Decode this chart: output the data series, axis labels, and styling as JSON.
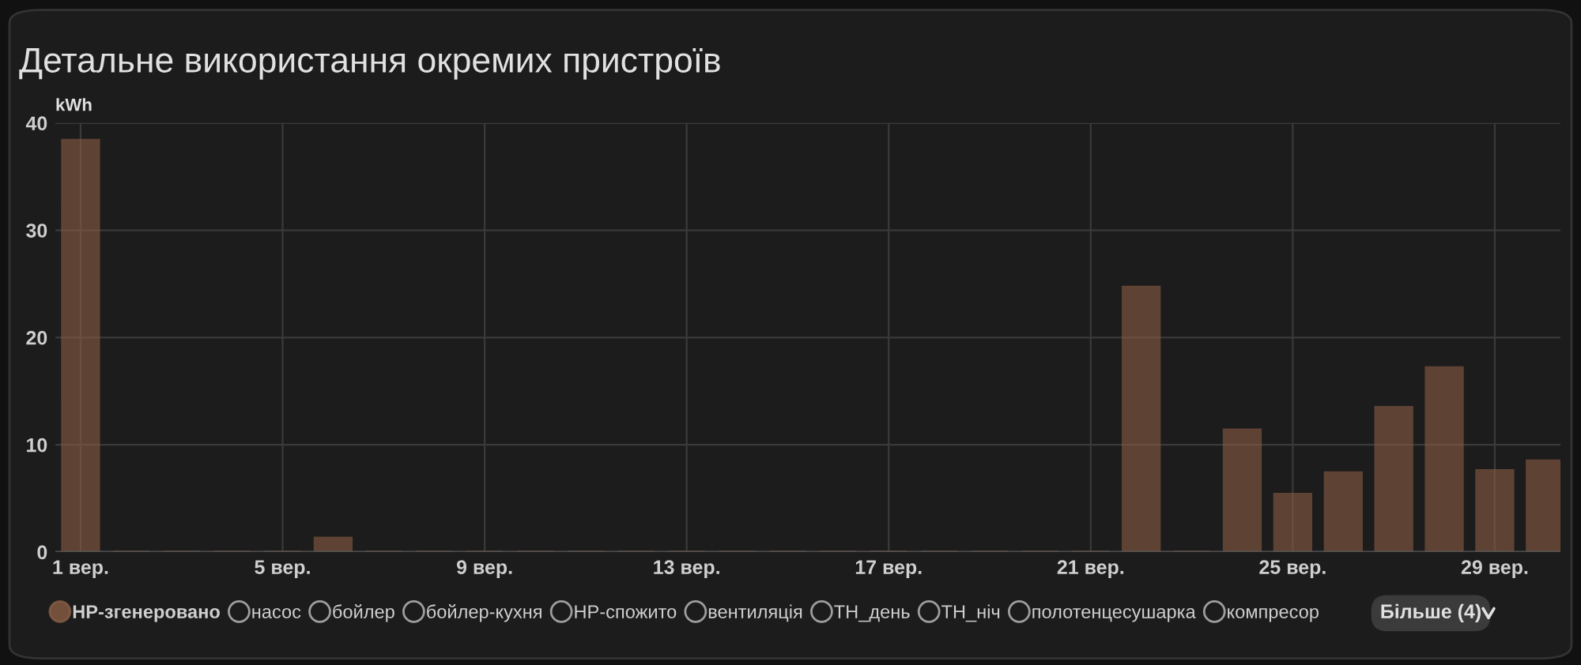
{
  "chart_data": {
    "type": "bar",
    "title": "Детальне використання окремих пристроїв",
    "ylabel": "kWh",
    "categories": [
      "1 вер.",
      null,
      null,
      null,
      "5 вер.",
      null,
      null,
      null,
      "9 вер.",
      null,
      null,
      null,
      "13 вер.",
      null,
      null,
      null,
      "17 вер.",
      null,
      null,
      null,
      "21 вер.",
      null,
      null,
      null,
      "25 вер.",
      null,
      null,
      null,
      "29 вер.",
      null
    ],
    "series": [
      {
        "name": "HP-згенеровано",
        "color": "#8a5e45",
        "values": [
          38.4,
          0,
          0,
          0,
          0,
          1.3,
          0,
          0,
          0,
          0,
          0,
          0,
          0,
          0,
          0,
          0,
          0,
          0,
          0,
          0,
          0,
          24.7,
          0,
          11.4,
          5.4,
          7.4,
          13.5,
          17.2,
          7.6,
          8.5
        ]
      },
      {
        "name": "насос",
        "color": "#9e9e9e",
        "values": [
          null,
          null,
          null,
          null,
          null,
          null,
          null,
          null,
          null,
          null,
          null,
          null,
          null,
          null,
          null,
          null,
          null,
          null,
          null,
          null,
          null,
          null,
          null,
          null,
          null,
          null,
          null,
          null,
          null,
          null
        ]
      },
      {
        "name": "бойлер",
        "color": "#9e9e9e",
        "values": [
          null,
          null,
          null,
          null,
          null,
          null,
          null,
          null,
          null,
          null,
          null,
          null,
          null,
          null,
          null,
          null,
          null,
          null,
          null,
          null,
          null,
          null,
          null,
          null,
          null,
          null,
          null,
          null,
          null,
          null
        ]
      },
      {
        "name": "бойлер-кухня",
        "color": "#9e9e9e",
        "values": [
          null,
          null,
          null,
          null,
          null,
          null,
          null,
          null,
          null,
          null,
          null,
          null,
          null,
          null,
          null,
          null,
          null,
          null,
          null,
          null,
          null,
          null,
          null,
          null,
          null,
          null,
          null,
          null,
          null,
          null
        ]
      },
      {
        "name": "HP-спожито",
        "color": "#9e9e9e",
        "values": [
          null,
          null,
          null,
          null,
          null,
          null,
          null,
          null,
          null,
          null,
          null,
          null,
          null,
          null,
          null,
          null,
          null,
          null,
          null,
          null,
          null,
          null,
          null,
          null,
          null,
          null,
          null,
          null,
          null,
          null
        ]
      },
      {
        "name": "вентиляція",
        "color": "#9e9e9e",
        "values": [
          null,
          null,
          null,
          null,
          null,
          null,
          null,
          null,
          null,
          null,
          null,
          null,
          null,
          null,
          null,
          null,
          null,
          null,
          null,
          null,
          null,
          null,
          null,
          null,
          null,
          null,
          null,
          null,
          null,
          null
        ]
      },
      {
        "name": "ТН_день",
        "color": "#9e9e9e",
        "values": [
          null,
          null,
          null,
          null,
          null,
          null,
          null,
          null,
          null,
          null,
          null,
          null,
          null,
          null,
          null,
          null,
          null,
          null,
          null,
          null,
          null,
          null,
          null,
          null,
          null,
          null,
          null,
          null,
          null,
          null
        ]
      },
      {
        "name": "ТН_ніч",
        "color": "#9e9e9e",
        "values": [
          null,
          null,
          null,
          null,
          null,
          null,
          null,
          null,
          null,
          null,
          null,
          null,
          null,
          null,
          null,
          null,
          null,
          null,
          null,
          null,
          null,
          null,
          null,
          null,
          null,
          null,
          null,
          null,
          null,
          null
        ]
      },
      {
        "name": "полотенцесушарка",
        "color": "#9e9e9e",
        "values": [
          null,
          null,
          null,
          null,
          null,
          null,
          null,
          null,
          null,
          null,
          null,
          null,
          null,
          null,
          null,
          null,
          null,
          null,
          null,
          null,
          null,
          null,
          null,
          null,
          null,
          null,
          null,
          null,
          null,
          null
        ]
      },
      {
        "name": "компресор",
        "color": "#9e9e9e",
        "values": [
          null,
          null,
          null,
          null,
          null,
          null,
          null,
          null,
          null,
          null,
          null,
          null,
          null,
          null,
          null,
          null,
          null,
          null,
          null,
          null,
          null,
          null,
          null,
          null,
          null,
          null,
          null,
          null,
          null,
          null
        ]
      }
    ],
    "ylim": [
      0,
      40
    ],
    "yticks": [
      0,
      10,
      20,
      30,
      40
    ],
    "grid": true,
    "legend": "bottom",
    "annotations": [
      "Більше (4)"
    ]
  }
}
